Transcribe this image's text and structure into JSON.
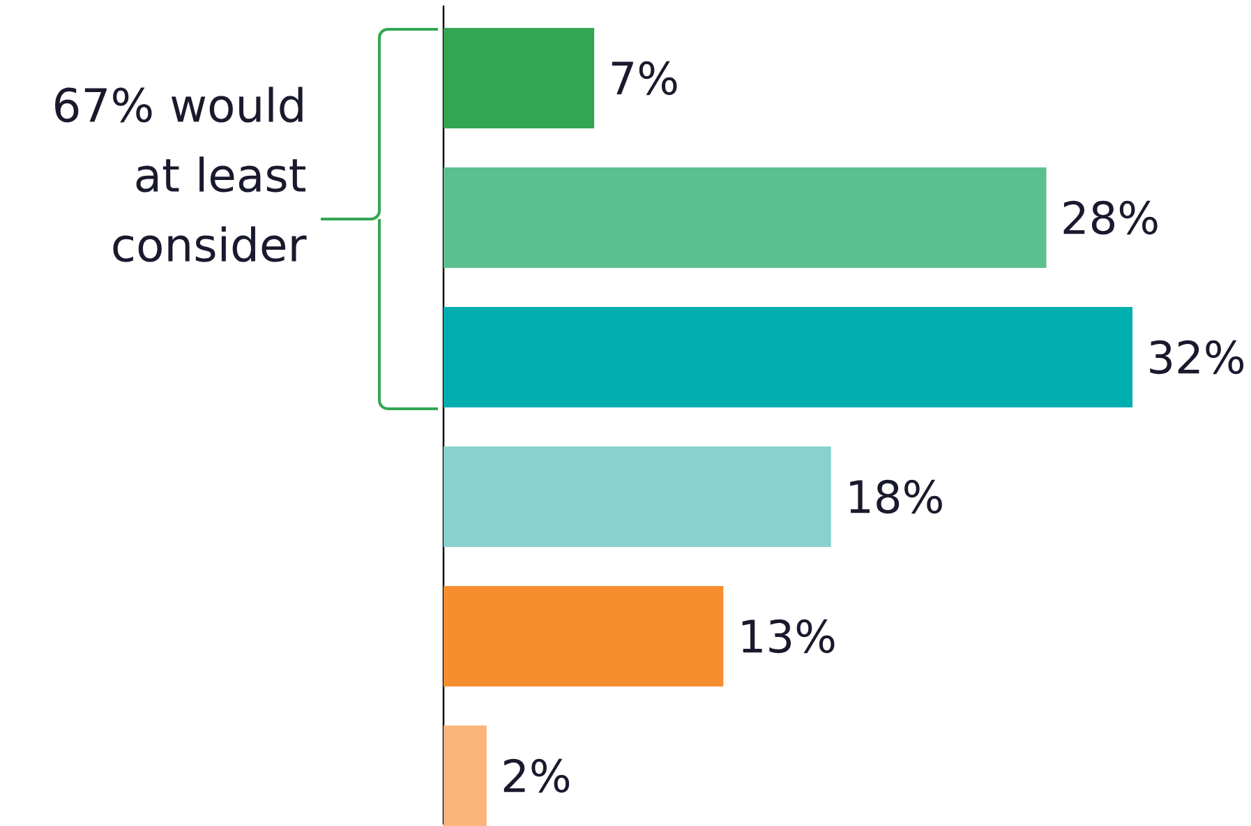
{
  "chart_data": {
    "type": "bar",
    "orientation": "horizontal",
    "categories": [
      null,
      null,
      null,
      null,
      null,
      null
    ],
    "values": [
      7,
      28,
      32,
      18,
      13,
      2
    ],
    "colors": [
      "#33a652",
      "#5cc08e",
      "#00aeb0",
      "#88d1cf",
      "#f68e2f",
      "#fbb47a"
    ],
    "value_labels": [
      "7%",
      "28%",
      "32%",
      "18%",
      "13%",
      "2%"
    ],
    "annotations": [
      "67% would at least consider"
    ]
  }
}
